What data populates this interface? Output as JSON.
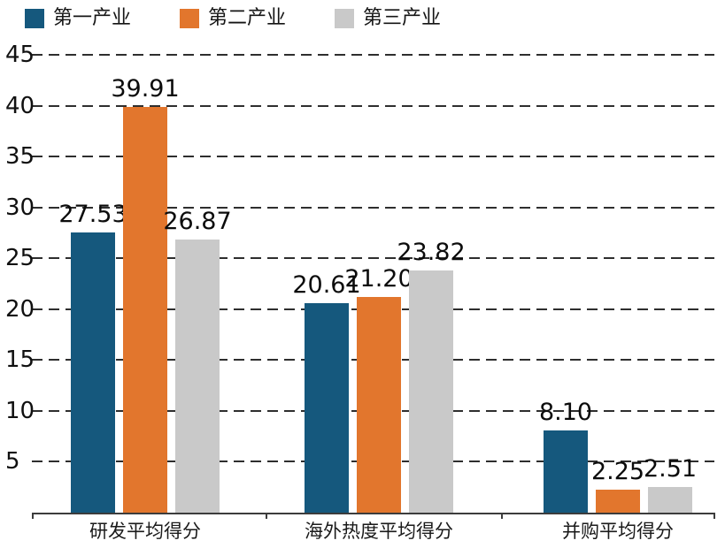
{
  "chart_data": {
    "type": "bar",
    "title": "",
    "categories": [
      "研发平均得分",
      "海外热度平均得分",
      "并购平均得分"
    ],
    "series": [
      {
        "name": "第一产业",
        "color": "#15587d",
        "values": [
          27.53,
          20.61,
          8.1
        ],
        "labels": [
          "27.53",
          "20.61",
          "8.10"
        ]
      },
      {
        "name": "第二产业",
        "color": "#e2762d",
        "values": [
          39.91,
          21.2,
          2.25
        ],
        "labels": [
          "39.91",
          "21.20",
          "2.25"
        ]
      },
      {
        "name": "第三产业",
        "color": "#c9c9c9",
        "values": [
          26.87,
          23.82,
          2.51
        ],
        "labels": [
          "26.87",
          "23.82",
          "2.51"
        ]
      }
    ],
    "xlabel": "",
    "ylabel": "",
    "ylim": [
      0,
      46
    ],
    "yticks": [
      5,
      10,
      15,
      20,
      25,
      30,
      35,
      40,
      45
    ],
    "grid": "dashed-horizontal",
    "legend_position": "top-left",
    "value_labels_shown": true
  }
}
